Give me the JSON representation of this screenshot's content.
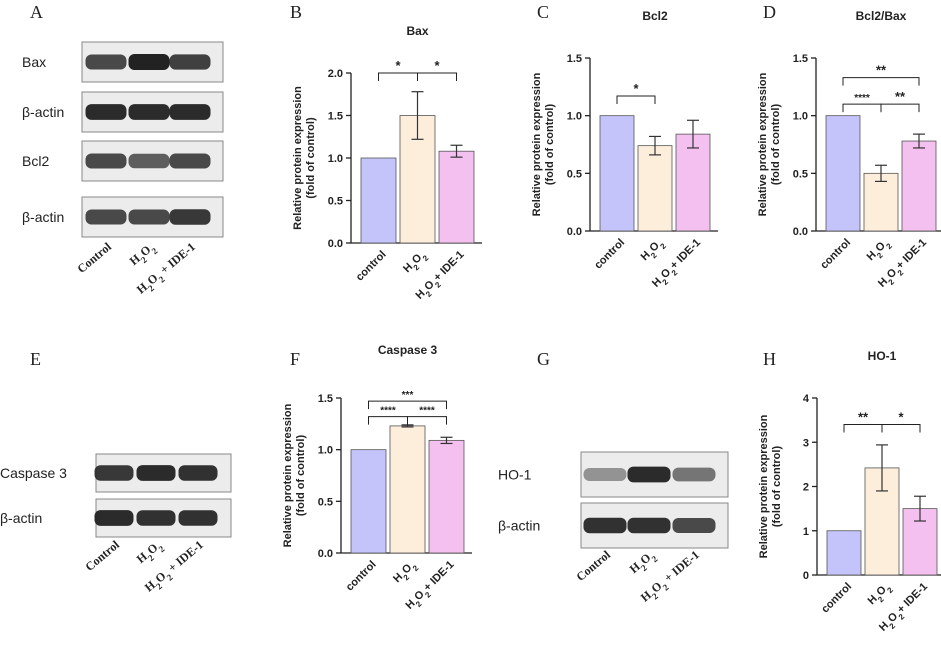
{
  "figure": {
    "panel_letters": {
      "A": "A",
      "B": "B",
      "C": "C",
      "D": "D",
      "E": "E",
      "F": "F",
      "G": "G",
      "H": "H"
    },
    "colors": {
      "control": "#c4c4fa",
      "h2o2": "#fdeedc",
      "ide": "#f4c0f0",
      "error": "#333333",
      "blot_band": "#222222",
      "blot_bg": "#ececec"
    }
  },
  "blots": {
    "A": {
      "rows": [
        "Bax",
        "β-actin",
        "Bcl2",
        "β-actin"
      ],
      "lanes": [
        "Control",
        "H2O2",
        "H2O2 + IDE-1"
      ],
      "intensity": [
        [
          0.75,
          1.0,
          0.8
        ],
        [
          0.95,
          0.95,
          0.95
        ],
        [
          0.75,
          0.6,
          0.75
        ],
        [
          0.75,
          0.75,
          0.85
        ]
      ]
    },
    "E": {
      "rows": [
        "Caspase 3",
        "β-actin"
      ],
      "lanes": [
        "Control",
        "H2O2",
        "H2O2 + IDE-1"
      ],
      "intensity": [
        [
          0.85,
          0.95,
          0.9
        ],
        [
          0.95,
          0.9,
          0.9
        ]
      ]
    },
    "G": {
      "rows": [
        "HO-1",
        "β-actin"
      ],
      "lanes": [
        "Control",
        "H2O2",
        "H2O2 + IDE-1"
      ],
      "intensity": [
        [
          0.25,
          0.95,
          0.45
        ],
        [
          0.9,
          0.9,
          0.75
        ]
      ]
    }
  },
  "chart_data": [
    {
      "panel": "B",
      "type": "bar",
      "title": "Bax",
      "categories": [
        "control",
        "H2O2",
        "H2O2+ IDE-1"
      ],
      "values": [
        1.0,
        1.5,
        1.08
      ],
      "errors": [
        0,
        0.28,
        0.07
      ],
      "ylabel": "Relative protein expression (fold of control)",
      "ylim": [
        0,
        2.0
      ],
      "yticks": [
        "0.0",
        "0.5",
        "1.0",
        "1.5",
        "2.0"
      ],
      "ytick_values": [
        0,
        0.5,
        1.0,
        1.5,
        2.0
      ],
      "significance": [
        {
          "from": 0,
          "to": 1,
          "label": "*",
          "level": 2
        },
        {
          "from": 1,
          "to": 2,
          "label": "*",
          "level": 2
        }
      ]
    },
    {
      "panel": "C",
      "type": "bar",
      "title": "Bcl2",
      "categories": [
        "control",
        "H2O2",
        "H2O2+ IDE-1"
      ],
      "values": [
        1.0,
        0.74,
        0.84
      ],
      "errors": [
        0,
        0.08,
        0.12
      ],
      "ylabel": "Relative protein expression (fold of control)",
      "ylim": [
        0,
        1.5
      ],
      "yticks": [
        "0.0",
        "0.5",
        "1.0",
        "1.5"
      ],
      "ytick_values": [
        0,
        0.5,
        1.0,
        1.5
      ],
      "significance": [
        {
          "from": 0,
          "to": 1,
          "label": "*",
          "level": 1.17
        }
      ]
    },
    {
      "panel": "D",
      "type": "bar",
      "title": "Bcl2/Bax",
      "categories": [
        "control",
        "H2O2",
        "H2O2+ IDE-1"
      ],
      "values": [
        1.0,
        0.5,
        0.78
      ],
      "errors": [
        0,
        0.07,
        0.06
      ],
      "ylabel": "Relative protein expression (fold of control)",
      "ylim": [
        0,
        1.5
      ],
      "yticks": [
        "0.0",
        "0.5",
        "1.0",
        "1.5"
      ],
      "ytick_values": [
        0,
        0.5,
        1.0,
        1.5
      ],
      "significance": [
        {
          "from": 0,
          "to": 1,
          "label": "****",
          "level": 1.1
        },
        {
          "from": 1,
          "to": 2,
          "label": "**",
          "level": 1.1
        },
        {
          "from": 0,
          "to": 2,
          "label": "**",
          "level": 1.33
        }
      ]
    },
    {
      "panel": "F",
      "type": "bar",
      "title": "Caspase 3",
      "categories": [
        "control",
        "H2O2",
        "H2O2+ IDE-1"
      ],
      "values": [
        1.0,
        1.23,
        1.09
      ],
      "errors": [
        0,
        0.01,
        0.03
      ],
      "ylabel": "Relative protein expression (fold of control)",
      "ylim": [
        0,
        1.5
      ],
      "yticks": [
        "0.0",
        "0.5",
        "1.0",
        "1.5"
      ],
      "ytick_values": [
        0,
        0.5,
        1.0,
        1.5
      ],
      "significance": [
        {
          "from": 0,
          "to": 1,
          "label": "****",
          "level": 1.32
        },
        {
          "from": 1,
          "to": 2,
          "label": "****",
          "level": 1.32
        },
        {
          "from": 0,
          "to": 2,
          "label": "***",
          "level": 1.47
        }
      ]
    },
    {
      "panel": "H",
      "type": "bar",
      "title": "HO-1",
      "categories": [
        "control",
        "H2O2",
        "H2O2+ IDE-1"
      ],
      "values": [
        1.0,
        2.42,
        1.5
      ],
      "errors": [
        0,
        0.52,
        0.28
      ],
      "ylabel": "Relative protein expression (fold of control)",
      "ylim": [
        0,
        4
      ],
      "yticks": [
        "0",
        "1",
        "2",
        "3",
        "4"
      ],
      "ytick_values": [
        0,
        1,
        2,
        3,
        4
      ],
      "significance": [
        {
          "from": 0,
          "to": 1,
          "label": "**",
          "level": 3.4
        },
        {
          "from": 1,
          "to": 2,
          "label": "*",
          "level": 3.4
        }
      ]
    }
  ]
}
